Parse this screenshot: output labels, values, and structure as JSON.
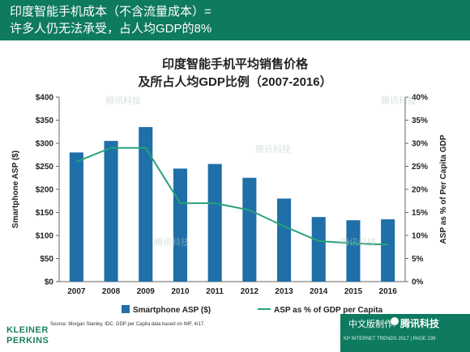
{
  "header": {
    "line1": "印度智能手机成本（不含流量成本）=",
    "line2": "许多人仍无法承受，占人均GDP的8%"
  },
  "chart_data": {
    "type": "bar+line",
    "title_line1": "印度智能手机平均销售价格",
    "title_line2": "及所占人均GDP比例（2007-2016）",
    "categories": [
      "2007",
      "2008",
      "2009",
      "2010",
      "2011",
      "2012",
      "2013",
      "2014",
      "2015",
      "2016"
    ],
    "series": [
      {
        "name": "Smartphone ASP ($)",
        "type": "bar",
        "axis": "left",
        "color": "#1f6fa8",
        "values": [
          280,
          305,
          335,
          245,
          255,
          225,
          180,
          140,
          133,
          135
        ]
      },
      {
        "name": "ASP as % of GDP per Capita",
        "type": "line",
        "axis": "right",
        "color": "#25a37a",
        "values": [
          26,
          29,
          29,
          17,
          17,
          15.5,
          12,
          8.8,
          8.3,
          8
        ]
      }
    ],
    "ylabel": "Smartphone ASP ($)",
    "y2label": "ASP as % of Per Capita GDP",
    "ylim": [
      0,
      400
    ],
    "y2lim": [
      0,
      40
    ],
    "yticks": [
      "$0",
      "$50",
      "$100",
      "$150",
      "$200",
      "$250",
      "$300",
      "$350",
      "$400"
    ],
    "y2ticks": [
      "0%",
      "5%",
      "10%",
      "15%",
      "20%",
      "25%",
      "30%",
      "35%",
      "40%"
    ],
    "grid": false,
    "legend": "bottom"
  },
  "source": "Source: Morgan Stanley, IDC. GDP per Capita data based on IMF, 4/17.",
  "logo": {
    "line1": "KLEINER",
    "line2": "PERKINS"
  },
  "footer": {
    "cn_label": "中文版制作:",
    "brand": "腾讯科技",
    "trends": "KP INTERNET TRENDS 2017  |  PAGE 239"
  },
  "watermark": "腾讯科技",
  "colors": {
    "header_bg": "#0e7a5f",
    "bar": "#1f6fa8",
    "line": "#25a37a"
  }
}
